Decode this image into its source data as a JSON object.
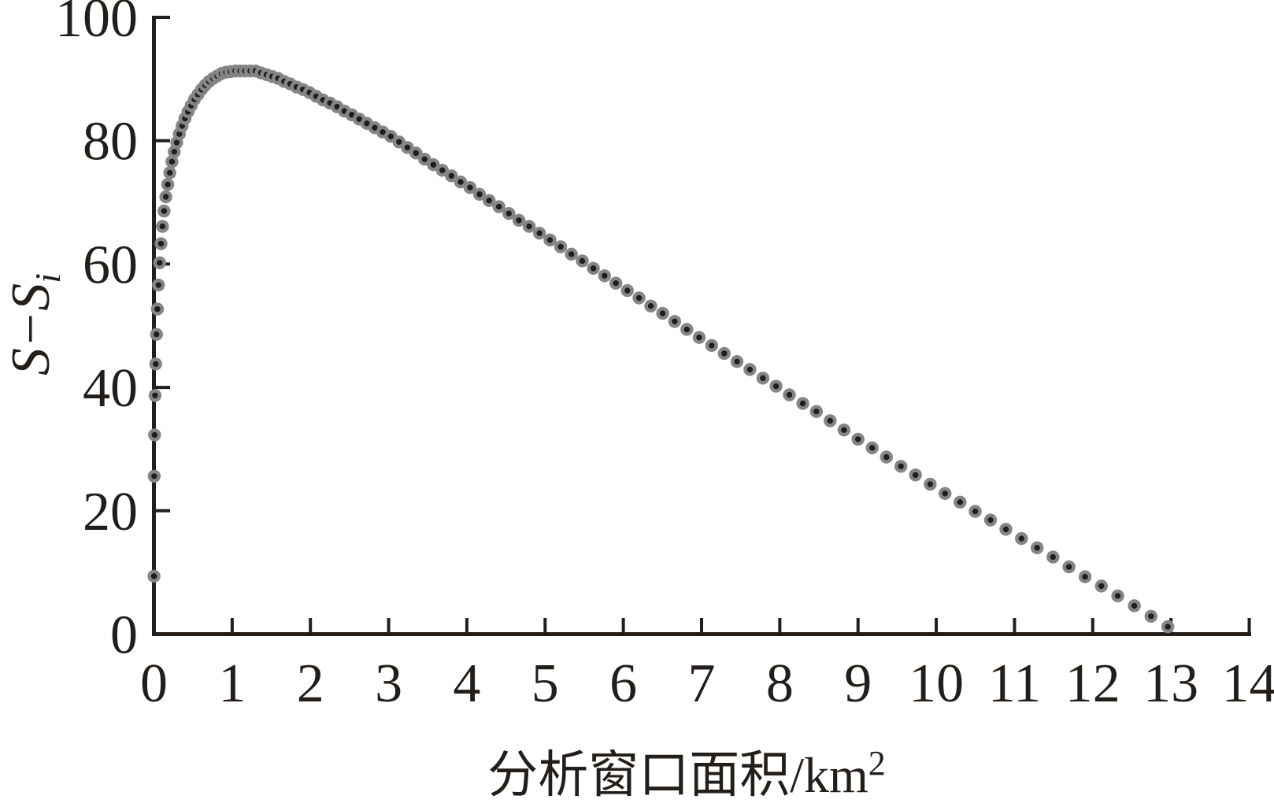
{
  "figure": {
    "background": "#ffffff",
    "axis_color": "#241e1a",
    "text_color": "#241e1a",
    "marker_outer_color": "#858585",
    "marker_inner_color": "#1e1e1e"
  },
  "axes": {
    "x": {
      "label_base": "分析窗口面积/km",
      "label_superscript": "2",
      "min": 0,
      "max": 14,
      "tick_labels": [
        "0",
        "1",
        "2",
        "3",
        "4",
        "5",
        "6",
        "7",
        "8",
        "9",
        "10",
        "11",
        "12",
        "13",
        "14"
      ]
    },
    "y": {
      "label_base": "S−S",
      "label_subscript": "i",
      "min": 0,
      "max": 100,
      "tick_labels": [
        "0",
        "20",
        "40",
        "60",
        "80",
        "100"
      ]
    }
  },
  "chart_data": {
    "type": "scatter",
    "title": "",
    "xlabel": "分析窗口面积/km²",
    "ylabel": "S−Si",
    "xlim": [
      0,
      14
    ],
    "ylim": [
      0,
      100
    ],
    "grid": false,
    "legend": null,
    "marker": "ring-dot",
    "points": [
      [
        0.0009,
        9.4
      ],
      [
        0.0036,
        25.6
      ],
      [
        0.0081,
        32.3
      ],
      [
        0.0144,
        38.7
      ],
      [
        0.0225,
        43.8
      ],
      [
        0.0324,
        48.6
      ],
      [
        0.0441,
        52.7
      ],
      [
        0.0576,
        56.6
      ],
      [
        0.0729,
        60.2
      ],
      [
        0.09,
        63.3
      ],
      [
        0.1089,
        66.1
      ],
      [
        0.1296,
        68.6
      ],
      [
        0.1521,
        70.9
      ],
      [
        0.1764,
        72.9
      ],
      [
        0.2025,
        74.8
      ],
      [
        0.2304,
        76.6
      ],
      [
        0.2601,
        78.2
      ],
      [
        0.2916,
        79.7
      ],
      [
        0.3249,
        81.1
      ],
      [
        0.36,
        82.4
      ],
      [
        0.3969,
        83.6
      ],
      [
        0.4356,
        84.7
      ],
      [
        0.4761,
        85.7
      ],
      [
        0.5184,
        86.7
      ],
      [
        0.5625,
        87.5
      ],
      [
        0.6084,
        88.3
      ],
      [
        0.6561,
        89.0
      ],
      [
        0.7056,
        89.6
      ],
      [
        0.7569,
        90.1
      ],
      [
        0.81,
        90.5
      ],
      [
        0.8649,
        90.9
      ],
      [
        0.9216,
        91.1
      ],
      [
        0.9801,
        91.2
      ],
      [
        1.0404,
        91.3
      ],
      [
        1.1025,
        91.3
      ],
      [
        1.1664,
        91.3
      ],
      [
        1.2321,
        91.3
      ],
      [
        1.2996,
        91.3
      ],
      [
        1.3689,
        91.0
      ],
      [
        1.44,
        90.7
      ],
      [
        1.5129,
        90.4
      ],
      [
        1.5876,
        90.1
      ],
      [
        1.6641,
        89.6
      ],
      [
        1.7424,
        89.2
      ],
      [
        1.8225,
        88.7
      ],
      [
        1.9044,
        88.3
      ],
      [
        1.9881,
        87.8
      ],
      [
        2.0736,
        87.2
      ],
      [
        2.1609,
        86.6
      ],
      [
        2.25,
        86.1
      ],
      [
        2.3409,
        85.5
      ],
      [
        2.4336,
        84.8
      ],
      [
        2.5281,
        84.2
      ],
      [
        2.6244,
        83.5
      ],
      [
        2.7225,
        82.8
      ],
      [
        2.8224,
        82.1
      ],
      [
        2.9241,
        81.4
      ],
      [
        3.0276,
        80.7
      ],
      [
        3.1329,
        79.8
      ],
      [
        3.24,
        78.9
      ],
      [
        3.3489,
        78.0
      ],
      [
        3.4596,
        77.0
      ],
      [
        3.5721,
        76.1
      ],
      [
        3.6864,
        75.2
      ],
      [
        3.8025,
        74.3
      ],
      [
        3.9204,
        73.3
      ],
      [
        4.0401,
        72.4
      ],
      [
        4.1616,
        71.3
      ],
      [
        4.2849,
        70.3
      ],
      [
        4.41,
        69.3
      ],
      [
        4.5369,
        68.2
      ],
      [
        4.6656,
        67.1
      ],
      [
        4.7961,
        66.1
      ],
      [
        4.9284,
        65.0
      ],
      [
        5.0625,
        63.9
      ],
      [
        5.1984,
        62.8
      ],
      [
        5.3361,
        61.6
      ],
      [
        5.4756,
        60.5
      ],
      [
        5.6169,
        59.3
      ],
      [
        5.76,
        58.1
      ],
      [
        5.9049,
        56.9
      ],
      [
        6.0516,
        55.7
      ],
      [
        6.2001,
        54.5
      ],
      [
        6.3504,
        53.2
      ],
      [
        6.5025,
        52.0
      ],
      [
        6.6564,
        50.7
      ],
      [
        6.8121,
        49.4
      ],
      [
        6.9696,
        48.1
      ],
      [
        7.1289,
        46.8
      ],
      [
        7.29,
        45.5
      ],
      [
        7.4529,
        44.2
      ],
      [
        7.6176,
        42.9
      ],
      [
        7.7841,
        41.5
      ],
      [
        7.9524,
        40.2
      ],
      [
        8.1225,
        38.8
      ],
      [
        8.2944,
        37.4
      ],
      [
        8.4681,
        36.1
      ],
      [
        8.6436,
        34.6
      ],
      [
        8.8209,
        33.1
      ],
      [
        9.0,
        31.6
      ],
      [
        9.1809,
        30.2
      ],
      [
        9.3636,
        28.7
      ],
      [
        9.5481,
        27.2
      ],
      [
        9.7344,
        25.8
      ],
      [
        9.9225,
        24.3
      ],
      [
        10.1124,
        22.8
      ],
      [
        10.3041,
        21.4
      ],
      [
        10.4976,
        19.9
      ],
      [
        10.6929,
        18.5
      ],
      [
        10.89,
        17.0
      ],
      [
        11.0889,
        15.5
      ],
      [
        11.2896,
        14.0
      ],
      [
        11.4921,
        12.5
      ],
      [
        11.6964,
        10.9
      ],
      [
        11.9025,
        9.3
      ],
      [
        12.1104,
        7.8
      ],
      [
        12.3201,
        6.2
      ],
      [
        12.5316,
        4.6
      ],
      [
        12.7449,
        2.9
      ],
      [
        12.96,
        1.2
      ]
    ]
  }
}
